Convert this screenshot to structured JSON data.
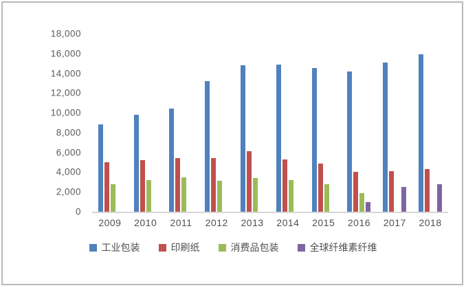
{
  "chart_data": {
    "type": "bar",
    "title": "",
    "xlabel": "",
    "ylabel": "",
    "categories": [
      "2009",
      "2010",
      "2011",
      "2012",
      "2013",
      "2014",
      "2015",
      "2016",
      "2017",
      "2018"
    ],
    "series": [
      {
        "name": "工业包装",
        "color": "#4F81BD",
        "values": [
          8800,
          9800,
          10400,
          13200,
          14800,
          14900,
          14500,
          14200,
          15100,
          15900
        ]
      },
      {
        "name": "印刷纸",
        "color": "#C0504D",
        "values": [
          5000,
          5200,
          5400,
          5400,
          6100,
          5300,
          4900,
          4000,
          4100,
          4300
        ]
      },
      {
        "name": "消费品包装",
        "color": "#9BBB59",
        "values": [
          2800,
          3200,
          3500,
          3100,
          3400,
          3200,
          2800,
          1900,
          0,
          0
        ]
      },
      {
        "name": "全球纤维素纤维",
        "color": "#8064A2",
        "values": [
          0,
          0,
          0,
          0,
          0,
          0,
          0,
          1000,
          2500,
          2800
        ]
      }
    ],
    "ylim": [
      0,
      18000
    ],
    "ytick_step": 2000,
    "yticks": [
      "0",
      "2,000",
      "4,000",
      "6,000",
      "8,000",
      "10,000",
      "12,000",
      "14,000",
      "16,000",
      "18,000"
    ],
    "grid": false,
    "legend_position": "bottom",
    "frame_border_color": "#b9b9b9",
    "axis_line_color": "#d6d6d6",
    "text_color": "#5a5a5a"
  }
}
